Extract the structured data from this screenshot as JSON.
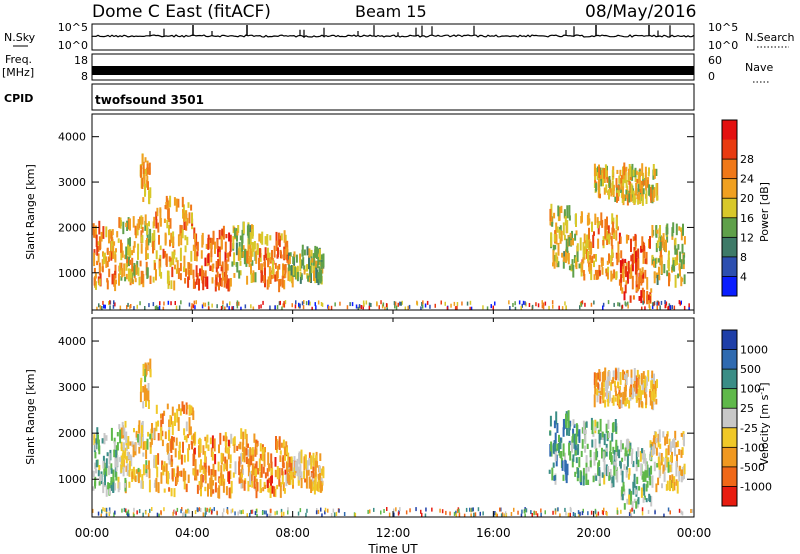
{
  "header": {
    "title": "Dome C East (fitACF)",
    "beam": "Beam 15",
    "date": "08/May/2016"
  },
  "nsky_panel": {
    "left_label": "N.Sky",
    "right_label": "N.Search",
    "left_ticks": [
      "10^5",
      "10^0"
    ],
    "right_ticks": [
      "10^5",
      "10^0"
    ]
  },
  "freq_panel": {
    "left_label_1": "Freq.",
    "left_label_2": "[MHz]",
    "right_label": "Nave",
    "left_ticks": [
      "18",
      "8"
    ],
    "right_ticks": [
      "60",
      "0"
    ]
  },
  "cpid_panel": {
    "label": "CPID",
    "value": "twofsound 3501"
  },
  "axes": {
    "ylabel": "Slant Range [km]",
    "xlabel": "Time UT",
    "y_ticks": [
      "1000",
      "2000",
      "3000",
      "4000"
    ],
    "x_ticks": [
      "00:00",
      "04:00",
      "08:00",
      "12:00",
      "16:00",
      "20:00",
      "00:00"
    ]
  },
  "power_colorbar": {
    "label": "Power [dB]",
    "ticks": [
      "4",
      "8",
      "12",
      "16",
      "20",
      "24",
      "28"
    ],
    "colors": [
      "#0a1eff",
      "#2d4fb0",
      "#3e7a68",
      "#5fa04a",
      "#d8c82a",
      "#f0a020",
      "#f07818",
      "#e83a10",
      "#e41010"
    ]
  },
  "velocity_colorbar": {
    "label": "Velocity [m s^-1]",
    "ticks": [
      "1000",
      "500",
      "100",
      "25",
      "-25",
      "-100",
      "-500",
      "-1000"
    ],
    "colors": [
      "#1f3fa8",
      "#2f6ab0",
      "#3a8d86",
      "#5fb84a",
      "#c8c8c8",
      "#f0c828",
      "#f09820",
      "#f06818",
      "#e81c10"
    ]
  },
  "chart_data": [
    {
      "type": "heatmap",
      "name": "Power",
      "xlabel": "Time UT",
      "ylabel": "Slant Range [km]",
      "xlim": [
        0,
        24
      ],
      "ylim": [
        180,
        4500
      ],
      "colorbar_range": [
        0,
        32
      ],
      "blobs": [
        {
          "t0": 0.0,
          "t1": 1.0,
          "r0": 700,
          "r1": 2000,
          "v": 22
        },
        {
          "t0": 1.0,
          "t1": 2.5,
          "r0": 800,
          "r1": 2200,
          "v": 18
        },
        {
          "t0": 1.9,
          "t1": 2.3,
          "r0": 2600,
          "r1": 3500,
          "v": 20
        },
        {
          "t0": 2.5,
          "t1": 4.0,
          "r0": 700,
          "r1": 2600,
          "v": 20
        },
        {
          "t0": 4.0,
          "t1": 5.5,
          "r0": 700,
          "r1": 1900,
          "v": 24
        },
        {
          "t0": 5.5,
          "t1": 6.5,
          "r0": 800,
          "r1": 2000,
          "v": 16
        },
        {
          "t0": 6.5,
          "t1": 7.8,
          "r0": 700,
          "r1": 1800,
          "v": 22
        },
        {
          "t0": 7.8,
          "t1": 9.2,
          "r0": 800,
          "r1": 1500,
          "v": 14
        },
        {
          "t0": 18.2,
          "t1": 19.5,
          "r0": 1000,
          "r1": 2400,
          "v": 16
        },
        {
          "t0": 19.5,
          "t1": 21.0,
          "r0": 900,
          "r1": 2200,
          "v": 20
        },
        {
          "t0": 20.0,
          "t1": 22.5,
          "r0": 2600,
          "r1": 3300,
          "v": 18
        },
        {
          "t0": 21.0,
          "t1": 22.3,
          "r0": 400,
          "r1": 1800,
          "v": 24
        },
        {
          "t0": 22.3,
          "t1": 23.6,
          "r0": 800,
          "r1": 2000,
          "v": 16
        }
      ]
    },
    {
      "type": "heatmap",
      "name": "Velocity",
      "xlabel": "Time UT",
      "ylabel": "Slant Range [km]",
      "xlim": [
        0,
        24
      ],
      "ylim": [
        180,
        4500
      ],
      "colorbar_range": [
        -1000,
        1000
      ],
      "blobs": [
        {
          "t0": 0.0,
          "t1": 1.0,
          "r0": 700,
          "r1": 2000,
          "v": 200
        },
        {
          "t0": 1.0,
          "t1": 2.5,
          "r0": 800,
          "r1": 2200,
          "v": -150
        },
        {
          "t0": 1.9,
          "t1": 2.3,
          "r0": 2600,
          "r1": 3500,
          "v": -200
        },
        {
          "t0": 2.5,
          "t1": 4.0,
          "r0": 700,
          "r1": 2600,
          "v": -400
        },
        {
          "t0": 4.0,
          "t1": 5.5,
          "r0": 700,
          "r1": 1900,
          "v": -500
        },
        {
          "t0": 5.5,
          "t1": 6.5,
          "r0": 800,
          "r1": 2000,
          "v": -350
        },
        {
          "t0": 6.5,
          "t1": 7.8,
          "r0": 700,
          "r1": 1800,
          "v": -450
        },
        {
          "t0": 7.8,
          "t1": 9.2,
          "r0": 800,
          "r1": 1500,
          "v": -300
        },
        {
          "t0": 18.2,
          "t1": 19.5,
          "r0": 1000,
          "r1": 2400,
          "v": 400
        },
        {
          "t0": 19.5,
          "t1": 21.0,
          "r0": 900,
          "r1": 2200,
          "v": 200
        },
        {
          "t0": 20.0,
          "t1": 22.5,
          "r0": 2600,
          "r1": 3300,
          "v": -300
        },
        {
          "t0": 21.0,
          "t1": 22.3,
          "r0": 400,
          "r1": 1800,
          "v": 150
        },
        {
          "t0": 22.3,
          "t1": 23.6,
          "r0": 800,
          "r1": 2000,
          "v": -200
        }
      ]
    }
  ]
}
